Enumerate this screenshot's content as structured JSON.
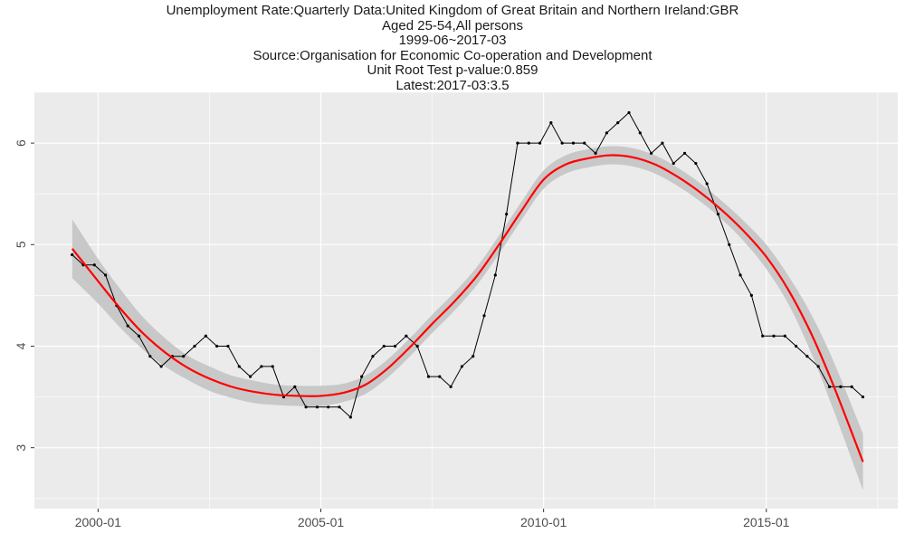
{
  "chart_data": {
    "type": "line",
    "title_lines": [
      "Unemployment Rate:Quarterly Data:United Kingdom of Great Britain and Northern Ireland:GBR",
      "Aged 25-54,All persons",
      "1999-06~2017-03",
      "Source:Organisation for Economic Co-operation and Development",
      "Unit Root Test p-value:0.859",
      "Latest:2017-03:3.5"
    ],
    "xlabel": "",
    "ylabel": "",
    "x_ticks": [
      {
        "label": "2000-01",
        "value": 2000.0
      },
      {
        "label": "2005-01",
        "value": 2005.0
      },
      {
        "label": "2010-01",
        "value": 2010.0
      },
      {
        "label": "2015-01",
        "value": 2015.0
      }
    ],
    "y_ticks": [
      3,
      4,
      5,
      6
    ],
    "xlim": [
      1998.57,
      2017.95
    ],
    "ylim": [
      2.4,
      6.5
    ],
    "grid": true,
    "colors": {
      "panel": "#ebebeb",
      "grid": "#ffffff",
      "series": "#000000",
      "trend": "#ff0000",
      "band": "#c8c8c8"
    },
    "series": [
      {
        "x": [
          "1999-06",
          "1999-09",
          "1999-12",
          "2000-03",
          "2000-06",
          "2000-09",
          "2000-12",
          "2001-03",
          "2001-06",
          "2001-09",
          "2001-12",
          "2002-03",
          "2002-06",
          "2002-09",
          "2002-12",
          "2003-03",
          "2003-06",
          "2003-09",
          "2003-12",
          "2004-03",
          "2004-06",
          "2004-09",
          "2004-12",
          "2005-03",
          "2005-06",
          "2005-09",
          "2005-12",
          "2006-03",
          "2006-06",
          "2006-09",
          "2006-12",
          "2007-03",
          "2007-06",
          "2007-09",
          "2007-12",
          "2008-03",
          "2008-06",
          "2008-09",
          "2008-12",
          "2009-03",
          "2009-06",
          "2009-09",
          "2009-12",
          "2010-03",
          "2010-06",
          "2010-09",
          "2010-12",
          "2011-03",
          "2011-06",
          "2011-09",
          "2011-12",
          "2012-03",
          "2012-06",
          "2012-09",
          "2012-12",
          "2013-03",
          "2013-06",
          "2013-09",
          "2013-12",
          "2014-03",
          "2014-06",
          "2014-09",
          "2014-12",
          "2015-03",
          "2015-06",
          "2015-09",
          "2015-12",
          "2016-03",
          "2016-06",
          "2016-09",
          "2016-12",
          "2017-03"
        ],
        "values": [
          4.9,
          4.8,
          4.8,
          4.7,
          4.4,
          4.2,
          4.1,
          3.9,
          3.8,
          3.9,
          3.9,
          4.0,
          4.1,
          4.0,
          4.0,
          3.8,
          3.7,
          3.8,
          3.8,
          3.5,
          3.6,
          3.4,
          3.4,
          3.4,
          3.4,
          3.3,
          3.7,
          3.9,
          4.0,
          4.0,
          4.1,
          4.0,
          3.7,
          3.7,
          3.6,
          3.8,
          3.9,
          4.3,
          4.7,
          5.3,
          6.0,
          6.0,
          6.0,
          6.2,
          6.0,
          6.0,
          6.0,
          5.9,
          6.1,
          6.2,
          6.3,
          6.1,
          5.9,
          6.0,
          5.8,
          5.9,
          5.8,
          5.6,
          5.3,
          5.0,
          4.7,
          4.5,
          4.1,
          4.1,
          4.1,
          4.0,
          3.9,
          3.8,
          3.6,
          3.6,
          3.6,
          3.5
        ]
      }
    ],
    "trend": {
      "x": [
        1999.42,
        2000.0,
        2000.5,
        2001.0,
        2001.5,
        2002.0,
        2002.5,
        2003.0,
        2003.5,
        2004.0,
        2004.5,
        2005.0,
        2005.5,
        2006.0,
        2006.5,
        2007.0,
        2007.5,
        2008.0,
        2008.5,
        2009.0,
        2009.5,
        2010.0,
        2010.5,
        2011.0,
        2011.5,
        2012.0,
        2012.5,
        2013.0,
        2013.5,
        2014.0,
        2014.5,
        2015.0,
        2015.5,
        2016.0,
        2016.5,
        2017.17
      ],
      "values": [
        4.96,
        4.64,
        4.37,
        4.13,
        3.94,
        3.79,
        3.68,
        3.6,
        3.55,
        3.52,
        3.51,
        3.51,
        3.54,
        3.62,
        3.78,
        3.99,
        4.22,
        4.44,
        4.69,
        5.0,
        5.33,
        5.64,
        5.79,
        5.85,
        5.88,
        5.86,
        5.79,
        5.67,
        5.52,
        5.34,
        5.13,
        4.88,
        4.55,
        4.13,
        3.62,
        2.86
      ],
      "lower": [
        4.67,
        4.42,
        4.18,
        3.97,
        3.8,
        3.67,
        3.56,
        3.49,
        3.44,
        3.42,
        3.41,
        3.41,
        3.45,
        3.53,
        3.69,
        3.9,
        4.13,
        4.35,
        4.6,
        4.91,
        5.24,
        5.55,
        5.7,
        5.76,
        5.79,
        5.77,
        5.7,
        5.58,
        5.43,
        5.25,
        5.03,
        4.76,
        4.41,
        3.94,
        3.38,
        2.58
      ],
      "upper": [
        5.25,
        4.86,
        4.56,
        4.29,
        4.08,
        3.91,
        3.8,
        3.71,
        3.66,
        3.62,
        3.61,
        3.61,
        3.63,
        3.71,
        3.87,
        4.08,
        4.31,
        4.53,
        4.78,
        5.09,
        5.42,
        5.73,
        5.88,
        5.94,
        5.97,
        5.95,
        5.88,
        5.76,
        5.61,
        5.43,
        5.23,
        5.0,
        4.69,
        4.32,
        3.86,
        3.14
      ]
    }
  }
}
